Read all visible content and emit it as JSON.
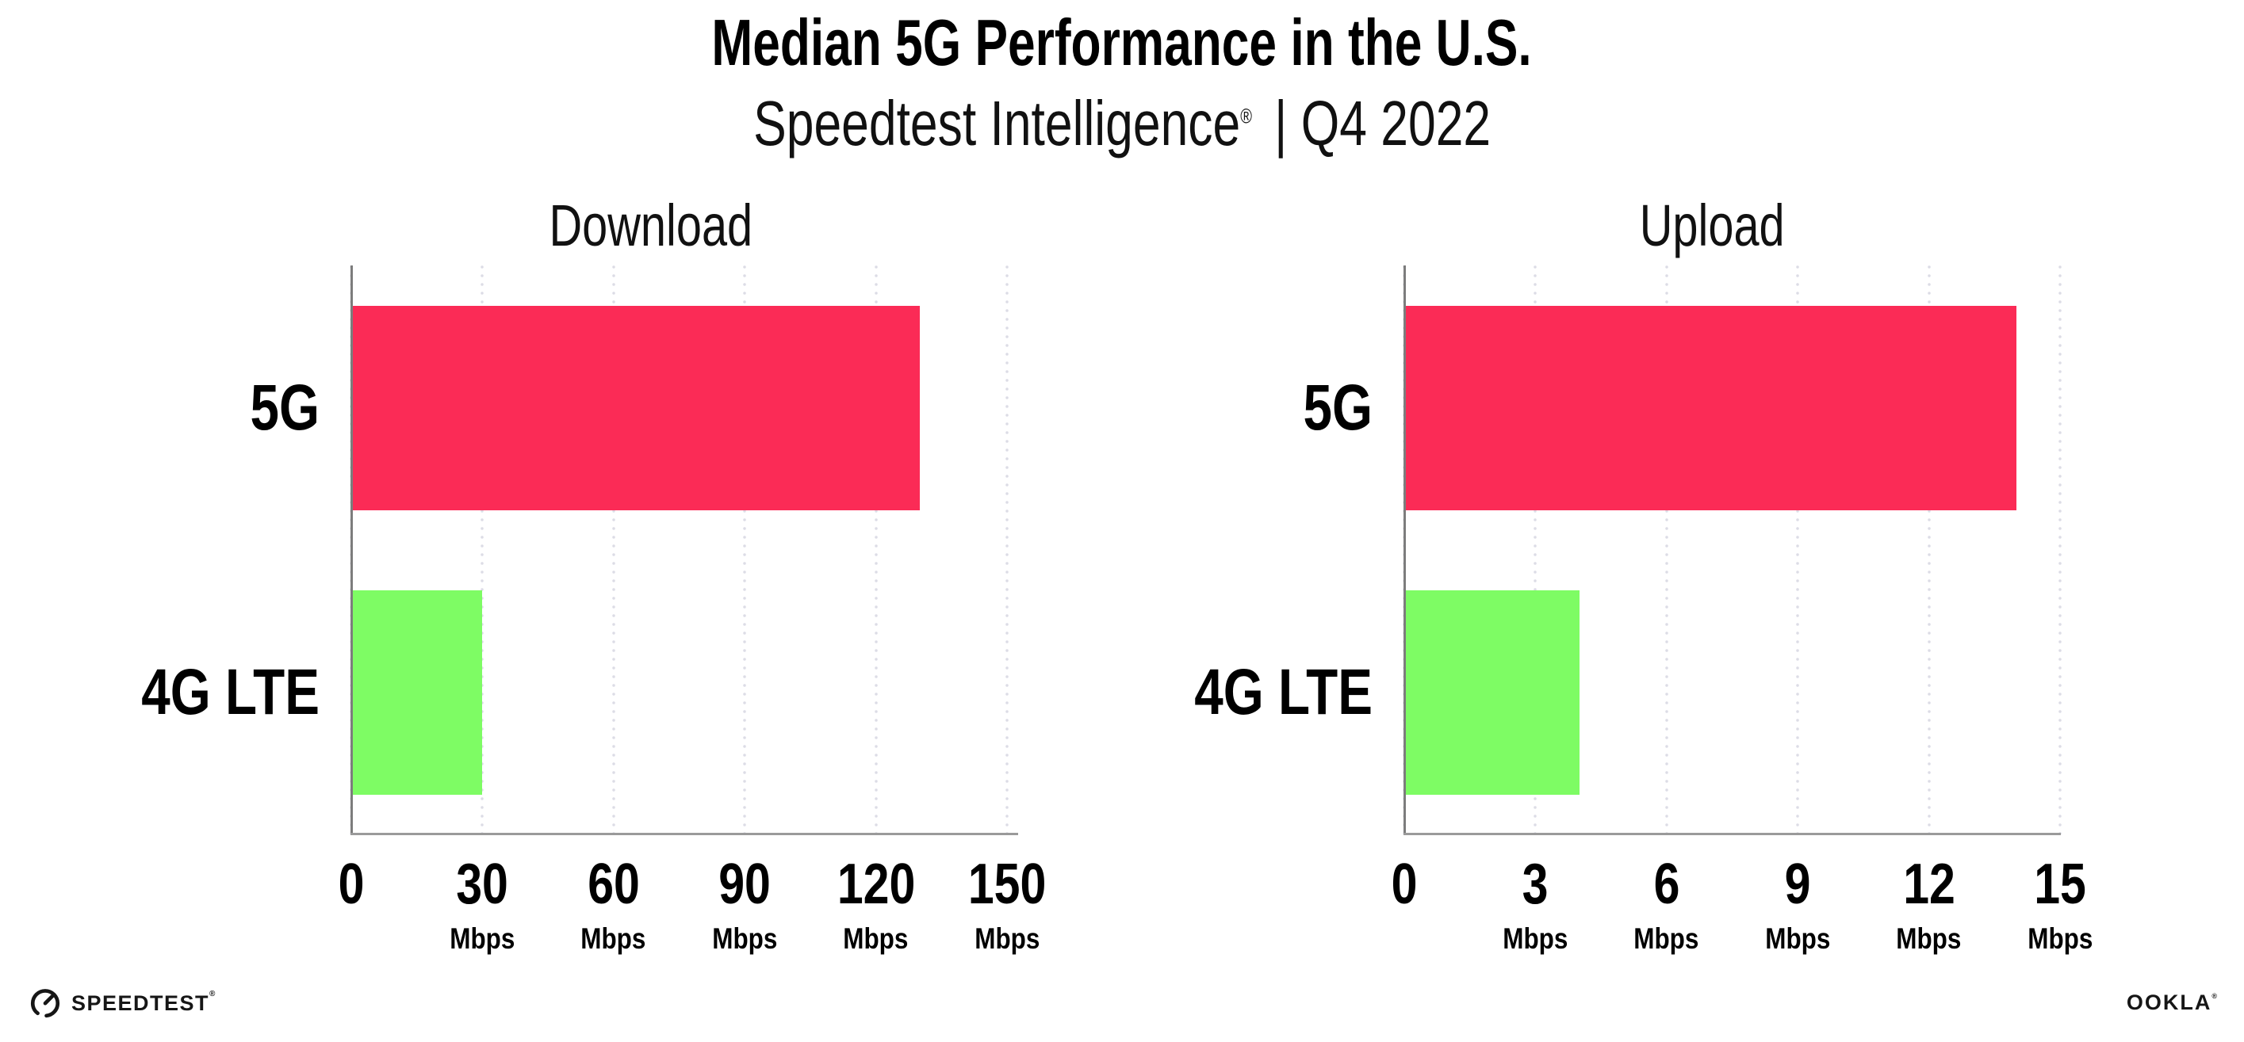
{
  "header": {
    "title": "Median 5G Performance in the U.S.",
    "subtitle": {
      "brand": "Speedtest Intelligence",
      "reg_mark": "®",
      "rest": "| Q4 2022"
    }
  },
  "footer": {
    "speedtest_wordmark": "SPEEDTEST",
    "speedtest_reg_mark": "®",
    "ookla_wordmark": "OOKLA",
    "ookla_reg_mark": "®"
  },
  "colors": {
    "bar_5g": "#FB2B56",
    "bar_4g_lte": "#7EFC64",
    "gridline": "#DCDCE6",
    "axis": "#9A9A9A",
    "text": "#000000"
  },
  "chart_data": [
    {
      "type": "bar",
      "orientation": "horizontal",
      "title": "Download",
      "categories": [
        "5G",
        "4G LTE"
      ],
      "values": [
        130,
        30
      ],
      "unit": "Mbps",
      "xlim": [
        0,
        150
      ],
      "xticks": [
        0,
        30,
        60,
        90,
        120,
        150
      ],
      "tick_unit_label": "Mbps",
      "bar_colors": [
        "#FB2B56",
        "#7EFC64"
      ],
      "grid": "dotted vertical gridlines at each tick",
      "legend": "none"
    },
    {
      "type": "bar",
      "orientation": "horizontal",
      "title": "Upload",
      "categories": [
        "5G",
        "4G LTE"
      ],
      "values": [
        14,
        4
      ],
      "unit": "Mbps",
      "xlim": [
        0,
        15
      ],
      "xticks": [
        0,
        3,
        6,
        9,
        12,
        15
      ],
      "tick_unit_label": "Mbps",
      "bar_colors": [
        "#FB2B56",
        "#7EFC64"
      ],
      "grid": "dotted vertical gridlines at each tick",
      "legend": "none"
    }
  ]
}
